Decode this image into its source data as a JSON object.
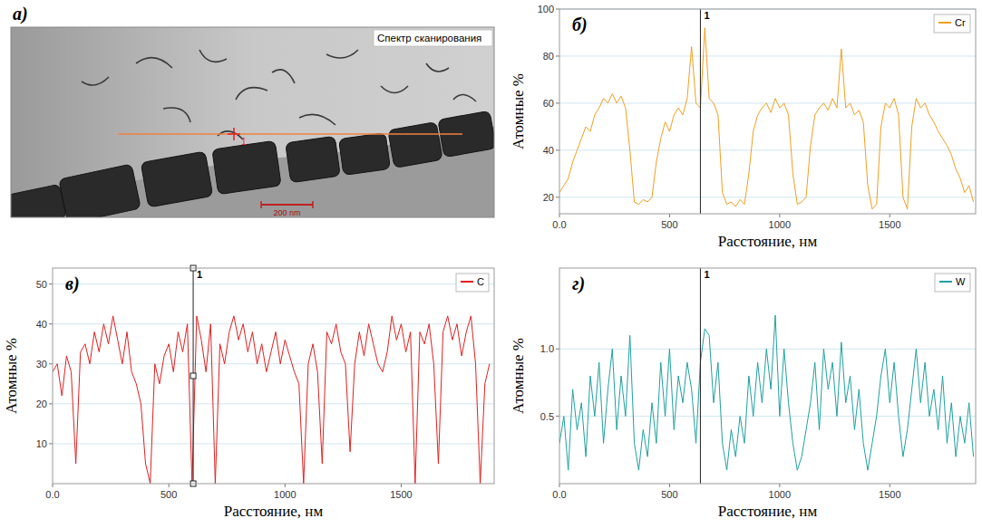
{
  "image": {
    "label": "a)",
    "title": "Спектр сканирования",
    "scale_bar": "200 nm",
    "marker": "1"
  },
  "chart_data": [
    {
      "type": "line",
      "panel_label": "б)",
      "xlabel": "Расстояние, нм",
      "ylabel": "Атомные %",
      "xlim": [
        0,
        1890
      ],
      "ylim": [
        13,
        100
      ],
      "xticks": [
        {
          "value": 0,
          "label": "0.0"
        },
        500,
        1000,
        1500
      ],
      "yticks": [
        20,
        40,
        60,
        80,
        100
      ],
      "grid": true,
      "legend": "top-right",
      "annotations": [
        {
          "x": 640,
          "label": "1"
        }
      ],
      "x": [
        0,
        20,
        40,
        60,
        80,
        100,
        120,
        140,
        160,
        180,
        200,
        220,
        240,
        260,
        280,
        300,
        320,
        340,
        360,
        380,
        400,
        420,
        440,
        460,
        480,
        500,
        520,
        540,
        560,
        580,
        600,
        620,
        640,
        660,
        680,
        700,
        720,
        740,
        760,
        780,
        800,
        820,
        840,
        860,
        880,
        900,
        920,
        940,
        960,
        980,
        1000,
        1020,
        1040,
        1060,
        1080,
        1100,
        1120,
        1140,
        1160,
        1180,
        1200,
        1220,
        1240,
        1260,
        1280,
        1300,
        1320,
        1340,
        1360,
        1380,
        1400,
        1420,
        1440,
        1460,
        1480,
        1500,
        1520,
        1540,
        1560,
        1580,
        1600,
        1620,
        1640,
        1660,
        1680,
        1700,
        1720,
        1740,
        1760,
        1780,
        1800,
        1820,
        1840,
        1860,
        1880
      ],
      "series": [
        {
          "name": "Cr",
          "color": "#f0a020",
          "values": [
            22,
            25,
            28,
            35,
            40,
            45,
            50,
            48,
            55,
            58,
            62,
            60,
            64,
            60,
            63,
            58,
            40,
            18,
            17,
            19,
            18,
            20,
            35,
            45,
            52,
            48,
            55,
            58,
            55,
            62,
            84,
            60,
            58,
            92,
            62,
            60,
            55,
            22,
            17,
            18,
            16,
            19,
            17,
            30,
            48,
            55,
            58,
            60,
            56,
            62,
            58,
            60,
            55,
            30,
            17,
            18,
            20,
            42,
            55,
            58,
            60,
            57,
            62,
            58,
            83,
            58,
            60,
            55,
            57,
            52,
            25,
            15,
            17,
            50,
            60,
            58,
            62,
            55,
            20,
            15,
            50,
            62,
            58,
            60,
            55,
            52,
            48,
            45,
            42,
            38,
            32,
            28,
            22,
            25,
            18
          ]
        }
      ]
    },
    {
      "type": "line",
      "panel_label": "в)",
      "xlabel": "Расстояние, нм",
      "ylabel": "Атомные %",
      "xlim": [
        0,
        1900
      ],
      "ylim": [
        0,
        54
      ],
      "xticks": [
        {
          "value": 0,
          "label": "0.0"
        },
        500,
        1000,
        1500
      ],
      "yticks": [
        10,
        20,
        30,
        40,
        50
      ],
      "grid": true,
      "legend": "top-right",
      "annotations": [
        {
          "x": 605,
          "label": "1"
        }
      ],
      "x": [
        0,
        20,
        40,
        60,
        80,
        100,
        120,
        140,
        160,
        180,
        200,
        220,
        240,
        260,
        280,
        300,
        320,
        340,
        360,
        380,
        400,
        420,
        440,
        460,
        480,
        500,
        520,
        540,
        560,
        580,
        600,
        620,
        640,
        660,
        680,
        700,
        720,
        740,
        760,
        780,
        800,
        820,
        840,
        860,
        880,
        900,
        920,
        940,
        960,
        980,
        1000,
        1020,
        1040,
        1060,
        1080,
        1100,
        1120,
        1140,
        1160,
        1180,
        1200,
        1220,
        1240,
        1260,
        1280,
        1300,
        1320,
        1340,
        1360,
        1380,
        1400,
        1420,
        1440,
        1460,
        1480,
        1500,
        1520,
        1540,
        1560,
        1580,
        1600,
        1620,
        1640,
        1660,
        1680,
        1700,
        1720,
        1740,
        1760,
        1780,
        1800,
        1820,
        1840,
        1860,
        1880
      ],
      "series": [
        {
          "name": "C",
          "color": "#e02020",
          "values": [
            28,
            30,
            22,
            32,
            28,
            5,
            33,
            35,
            30,
            38,
            33,
            40,
            35,
            42,
            36,
            30,
            38,
            28,
            25,
            20,
            5,
            0,
            30,
            25,
            32,
            35,
            28,
            38,
            33,
            40,
            0,
            42,
            36,
            28,
            40,
            0,
            35,
            30,
            38,
            42,
            36,
            40,
            33,
            38,
            30,
            35,
            28,
            33,
            38,
            30,
            36,
            32,
            28,
            25,
            0,
            30,
            35,
            28,
            5,
            38,
            35,
            40,
            33,
            30,
            8,
            30,
            38,
            32,
            40,
            35,
            30,
            28,
            33,
            42,
            36,
            40,
            33,
            38,
            0,
            38,
            35,
            40,
            30,
            5,
            38,
            42,
            36,
            40,
            32,
            38,
            42,
            30,
            0,
            25,
            30
          ]
        }
      ]
    },
    {
      "type": "line",
      "panel_label": "г)",
      "xlabel": "Расстояние, нм",
      "ylabel": "Атомные %",
      "xlim": [
        0,
        1890
      ],
      "ylim": [
        0,
        1.6
      ],
      "xticks": [
        {
          "value": 0,
          "label": "0.0"
        },
        500,
        1000,
        1500
      ],
      "yticks": [
        0.5,
        {
          "value": 1,
          "label": "1.0"
        }
      ],
      "grid": true,
      "legend": "top-right",
      "annotations": [
        {
          "x": 640,
          "label": "1"
        }
      ],
      "x": [
        0,
        20,
        40,
        60,
        80,
        100,
        120,
        140,
        160,
        180,
        200,
        220,
        240,
        260,
        280,
        300,
        320,
        340,
        360,
        380,
        400,
        420,
        440,
        460,
        480,
        500,
        520,
        540,
        560,
        580,
        600,
        620,
        640,
        660,
        680,
        700,
        720,
        740,
        760,
        780,
        800,
        820,
        840,
        860,
        880,
        900,
        920,
        940,
        960,
        980,
        1000,
        1020,
        1040,
        1060,
        1080,
        1100,
        1120,
        1140,
        1160,
        1180,
        1200,
        1220,
        1240,
        1260,
        1280,
        1300,
        1320,
        1340,
        1360,
        1380,
        1400,
        1420,
        1440,
        1460,
        1480,
        1500,
        1520,
        1540,
        1560,
        1580,
        1600,
        1620,
        1640,
        1660,
        1680,
        1700,
        1720,
        1740,
        1760,
        1780,
        1800,
        1820,
        1840,
        1860,
        1880
      ],
      "series": [
        {
          "name": "W",
          "color": "#20a0a0",
          "values": [
            0.3,
            0.5,
            0.1,
            0.7,
            0.4,
            0.6,
            0.2,
            0.8,
            0.5,
            0.9,
            0.3,
            0.7,
            1.0,
            0.4,
            0.8,
            0.5,
            1.1,
            0.3,
            0.1,
            0.4,
            0.2,
            0.6,
            0.3,
            0.9,
            0.5,
            1.0,
            0.4,
            0.8,
            0.6,
            0.9,
            0.7,
            0.3,
            0.9,
            1.15,
            1.1,
            0.6,
            0.9,
            0.3,
            0.1,
            0.4,
            0.2,
            0.5,
            0.3,
            0.8,
            0.5,
            0.9,
            0.6,
            1.0,
            0.7,
            1.25,
            0.5,
            1.0,
            0.6,
            0.3,
            0.1,
            0.2,
            0.4,
            0.6,
            0.9,
            0.4,
            1.0,
            0.7,
            0.9,
            0.5,
            1.05,
            0.6,
            0.8,
            0.4,
            0.7,
            0.3,
            0.1,
            0.3,
            0.5,
            0.8,
            1.0,
            0.6,
            0.9,
            0.5,
            0.2,
            0.4,
            0.7,
            1.0,
            0.6,
            0.9,
            0.5,
            0.7,
            0.4,
            0.8,
            0.3,
            0.6,
            0.2,
            0.5,
            0.3,
            0.6,
            0.2
          ]
        }
      ]
    }
  ]
}
